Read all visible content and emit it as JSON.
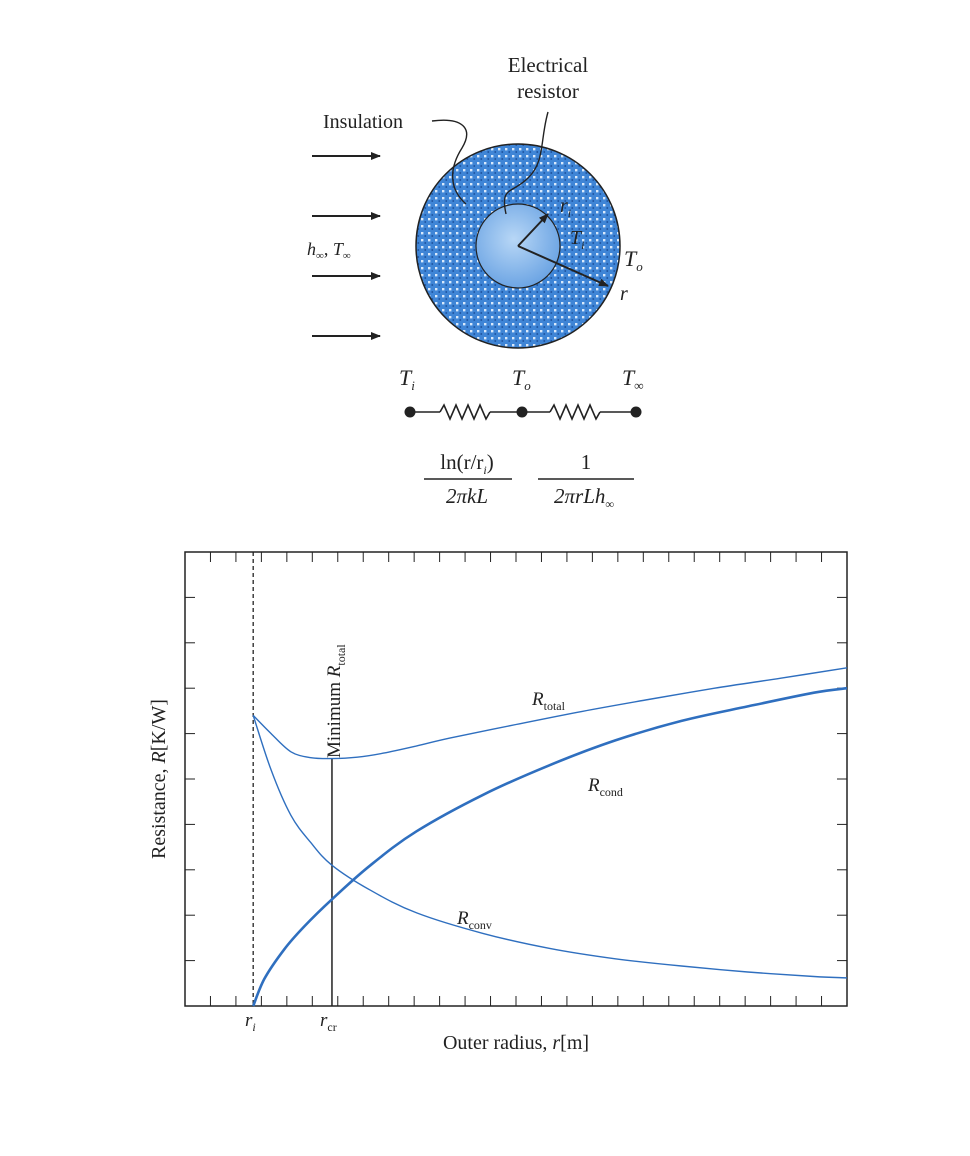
{
  "diagram": {
    "labels": {
      "electrical_resistor_line1": "Electrical",
      "electrical_resistor_line2": "resistor",
      "insulation": "Insulation",
      "h_inf": "h",
      "h_inf_sub": "∞",
      "t_inf": "T",
      "t_inf_sub": "∞",
      "h_sep": ", ",
      "r_i": "r",
      "r_i_sub": "i",
      "T_i": "T",
      "T_i_sub": "i",
      "T_o": "T",
      "T_o_sub": "o",
      "r": "r"
    },
    "network": {
      "node1": {
        "main": "T",
        "sub": "i"
      },
      "node2": {
        "main": "T",
        "sub": "o"
      },
      "node3": {
        "main": "T",
        "sub": "∞"
      },
      "cond_numerator": "ln(r/r",
      "cond_numerator_sub": "i",
      "cond_numerator_close": ")",
      "cond_denominator": "2πkL",
      "conv_numerator": "1",
      "conv_denominator": "2πrLh",
      "conv_denominator_sub": "∞"
    },
    "colors": {
      "insulation_fill": "#3f85d6",
      "core_fill": "#8fbfee",
      "curve": "#2f6fbf",
      "ink": "#222222"
    }
  },
  "chart_data": {
    "type": "line",
    "xlabel_main": "Outer radius, ",
    "xlabel_var": "r",
    "xlabel_unit": "[m]",
    "ylabel_main": "Resistance, ",
    "ylabel_var": "R",
    "ylabel_unit": "[K/W]",
    "tick_labels": {
      "ri": "r",
      "ri_sub": "i",
      "rcr": "r",
      "rcr_sub": "cr"
    },
    "annotation_minimum": "Minimum ",
    "annotation_minimum_var": "R",
    "annotation_minimum_sub": "total",
    "xlim": [
      0,
      1
    ],
    "ylim": [
      0,
      1
    ],
    "r_i": 0.103,
    "r_cr": 0.222,
    "series": [
      {
        "name": "R",
        "name_sub": "total",
        "x": [
          0.103,
          0.13,
          0.16,
          0.19,
          0.222,
          0.26,
          0.3,
          0.35,
          0.4,
          0.5,
          0.6,
          0.7,
          0.8,
          0.9,
          1.0
        ],
        "values": [
          0.64,
          0.6,
          0.56,
          0.547,
          0.545,
          0.548,
          0.557,
          0.573,
          0.59,
          0.62,
          0.649,
          0.675,
          0.7,
          0.722,
          0.745
        ]
      },
      {
        "name": "R",
        "name_sub": "cond",
        "x": [
          0.103,
          0.12,
          0.15,
          0.18,
          0.222,
          0.28,
          0.35,
          0.45,
          0.55,
          0.65,
          0.75,
          0.85,
          0.95,
          1.0
        ],
        "values": [
          0.0,
          0.06,
          0.125,
          0.175,
          0.235,
          0.31,
          0.385,
          0.465,
          0.53,
          0.585,
          0.628,
          0.66,
          0.69,
          0.7
        ]
      },
      {
        "name": "R",
        "name_sub": "conv",
        "x": [
          0.103,
          0.13,
          0.16,
          0.19,
          0.222,
          0.28,
          0.35,
          0.45,
          0.55,
          0.65,
          0.75,
          0.85,
          0.95,
          1.0
        ],
        "values": [
          0.64,
          0.52,
          0.42,
          0.36,
          0.31,
          0.255,
          0.205,
          0.16,
          0.127,
          0.104,
          0.088,
          0.075,
          0.065,
          0.062
        ]
      }
    ]
  }
}
